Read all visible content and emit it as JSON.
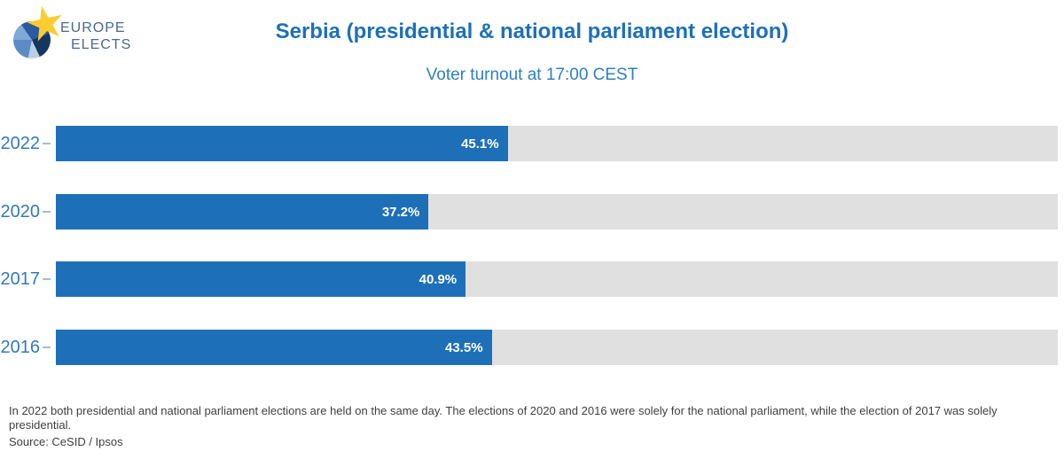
{
  "brand": {
    "line1": "EUROPE",
    "line2": "ELECTS",
    "star_icon": "★",
    "star_color": "#fbcd2f",
    "pie_colors": [
      "#7ea9d8",
      "#2d5a9e",
      "#16365f",
      "#b9cfe6",
      "#5d8cc4"
    ]
  },
  "header": {
    "title": "Serbia (presidential & national parliament election)",
    "subtitle": "Voter turnout at 17:00 CEST"
  },
  "chart_data": {
    "type": "bar",
    "orientation": "horizontal",
    "title": "Serbia (presidential & national parliament election)",
    "subtitle": "Voter turnout at 17:00 CEST",
    "categories": [
      "2022",
      "2020",
      "2017",
      "2016"
    ],
    "values": [
      45.1,
      37.2,
      40.9,
      43.5
    ],
    "value_labels": [
      "45.1%",
      "37.2%",
      "40.9%",
      "43.5%"
    ],
    "xlim": [
      0,
      100
    ],
    "grid": "off",
    "legend": "none",
    "bar_color": "#1d70b8",
    "track_color": "#e0e0e0",
    "category_label_color": "#3279bc",
    "value_label_color": "#ffffff"
  },
  "footer": {
    "note": "In 2022 both presidential and national parliament elections are held on the same day. The elections of 2020 and 2016 were solely for the national parliament, while the election of 2017 was solely presidential.",
    "source": "Source: CeSID / Ipsos"
  }
}
